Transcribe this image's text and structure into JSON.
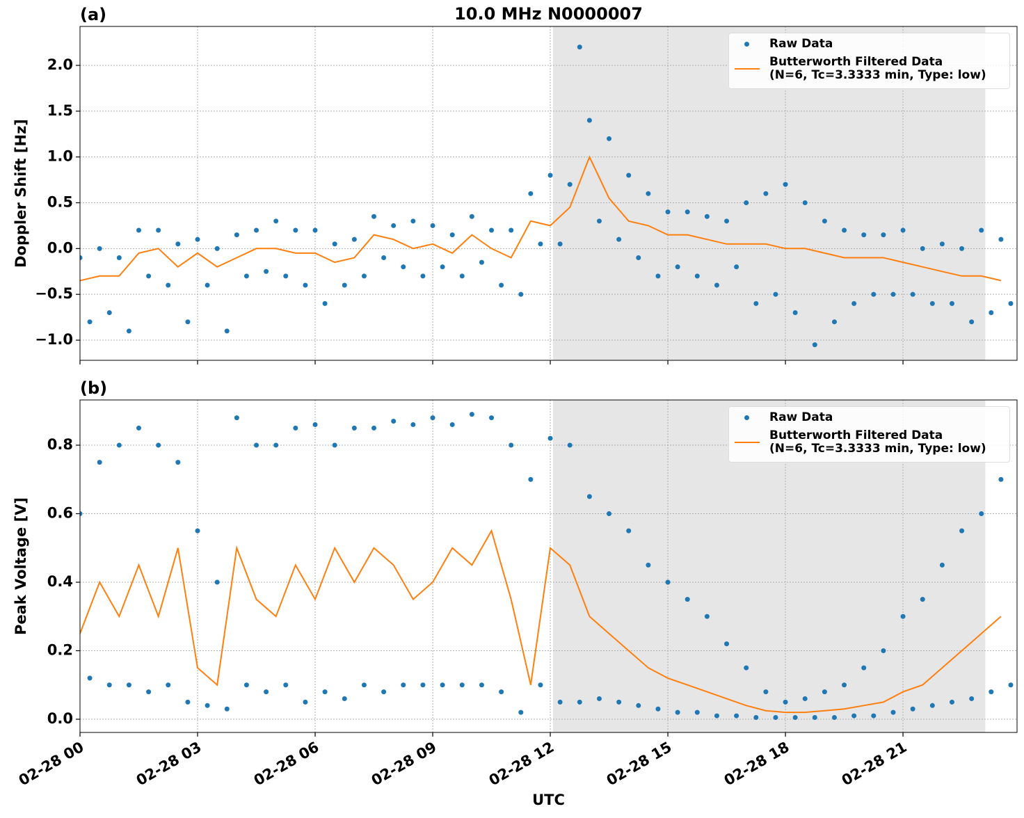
{
  "chart_data": [
    {
      "type": "scatter-line",
      "label": "(a)",
      "title": "10.0 MHz N0000007",
      "ylabel": "Doppler Shift [Hz]",
      "xlim": [
        0,
        23.91
      ],
      "ylim": [
        -1.22,
        2.425
      ],
      "xticks": [
        0,
        3,
        6,
        9,
        12,
        15,
        18,
        21
      ],
      "yticks": [
        {
          "value": -1.0,
          "label": "−1.0"
        },
        {
          "value": -0.5,
          "label": "−0.5"
        },
        {
          "value": 0.0,
          "label": "0.0"
        },
        0.5,
        {
          "value": 1.0,
          "label": "1.0"
        },
        1.5,
        {
          "value": 2.0,
          "label": "2.0"
        }
      ],
      "grid": true,
      "shade": [
        12.07,
        23.1
      ],
      "legend": "upper right",
      "series": [
        {
          "name": "Raw Data",
          "kind": "scatter",
          "color": "#1f77b4",
          "x": [
            0,
            0.25,
            0.5,
            0.75,
            1,
            1.25,
            1.5,
            1.75,
            2,
            2.25,
            2.5,
            2.75,
            3,
            3.25,
            3.5,
            3.75,
            4,
            4.25,
            4.5,
            4.75,
            5,
            5.25,
            5.5,
            5.75,
            6,
            6.25,
            6.5,
            6.75,
            7,
            7.25,
            7.5,
            7.75,
            8,
            8.25,
            8.5,
            8.75,
            9,
            9.25,
            9.5,
            9.75,
            10,
            10.25,
            10.5,
            10.75,
            11,
            11.25,
            11.5,
            11.75,
            12,
            12.25,
            12.5,
            12.75,
            13,
            13.25,
            13.5,
            13.75,
            14,
            14.25,
            14.5,
            14.75,
            15,
            15.25,
            15.5,
            15.75,
            16,
            16.25,
            16.5,
            16.75,
            17,
            17.25,
            17.5,
            17.75,
            18,
            18.25,
            18.5,
            18.75,
            19,
            19.25,
            19.5,
            19.75,
            20,
            20.25,
            20.5,
            20.75,
            21,
            21.25,
            21.5,
            21.75,
            22,
            22.25,
            22.5,
            22.75,
            23,
            23.25,
            23.5,
            23.75
          ],
          "values": [
            -0.1,
            -0.8,
            0.0,
            -0.7,
            -0.1,
            -0.9,
            0.2,
            -0.3,
            0.2,
            -0.4,
            0.05,
            -0.8,
            0.1,
            -0.4,
            0.0,
            -0.9,
            0.15,
            -0.3,
            0.2,
            -0.25,
            0.3,
            -0.3,
            0.2,
            -0.4,
            0.2,
            -0.6,
            0.05,
            -0.4,
            0.1,
            -0.3,
            0.35,
            -0.1,
            0.25,
            -0.2,
            0.3,
            -0.3,
            0.25,
            -0.2,
            0.15,
            -0.3,
            0.35,
            -0.15,
            0.2,
            -0.4,
            0.2,
            -0.5,
            0.6,
            0.05,
            0.8,
            0.05,
            0.7,
            2.2,
            1.4,
            0.3,
            1.2,
            0.1,
            0.8,
            -0.1,
            0.6,
            -0.3,
            0.4,
            -0.2,
            0.4,
            -0.3,
            0.35,
            -0.4,
            0.3,
            -0.2,
            0.5,
            -0.6,
            0.6,
            -0.5,
            0.7,
            -0.7,
            0.5,
            -1.05,
            0.3,
            -0.8,
            0.2,
            -0.6,
            0.15,
            -0.5,
            0.15,
            -0.5,
            0.2,
            -0.5,
            0.0,
            -0.6,
            0.05,
            -0.6,
            0.0,
            -0.8,
            0.2,
            -0.7,
            0.1,
            -0.6
          ]
        },
        {
          "name": "Butterworth Filtered Data\n(N=6, Tc=3.3333 min, Type: low)",
          "kind": "line",
          "color": "#ff7f0e",
          "x": [
            0,
            0.5,
            1,
            1.5,
            2,
            2.5,
            3,
            3.5,
            4,
            4.5,
            5,
            5.5,
            6,
            6.5,
            7,
            7.5,
            8,
            8.5,
            9,
            9.5,
            10,
            10.5,
            11,
            11.5,
            12,
            12.5,
            13,
            13.5,
            14,
            14.5,
            15,
            15.5,
            16,
            16.5,
            17,
            17.5,
            18,
            18.5,
            19,
            19.5,
            20,
            20.5,
            21,
            21.5,
            22,
            22.5,
            23,
            23.5
          ],
          "values": [
            -0.35,
            -0.3,
            -0.3,
            -0.05,
            0.0,
            -0.2,
            -0.05,
            -0.2,
            -0.1,
            0.0,
            0.0,
            -0.05,
            -0.05,
            -0.15,
            -0.1,
            0.15,
            0.1,
            0.0,
            0.05,
            -0.05,
            0.15,
            0.0,
            -0.1,
            0.3,
            0.25,
            0.45,
            1.0,
            0.55,
            0.3,
            0.25,
            0.15,
            0.15,
            0.1,
            0.05,
            0.05,
            0.05,
            0.0,
            0.0,
            -0.05,
            -0.1,
            -0.1,
            -0.1,
            -0.15,
            -0.2,
            -0.25,
            -0.3,
            -0.3,
            -0.35
          ]
        }
      ]
    },
    {
      "type": "scatter-line",
      "label": "(b)",
      "ylabel": "Peak Voltage [V]",
      "xlabel": "UTC",
      "xlim": [
        0,
        23.91
      ],
      "ylim": [
        -0.0386,
        0.932
      ],
      "xticks": [
        {
          "value": 0,
          "label": "02-28 00"
        },
        {
          "value": 3,
          "label": "02-28 03"
        },
        {
          "value": 6,
          "label": "02-28 06"
        },
        {
          "value": 9,
          "label": "02-28 09"
        },
        {
          "value": 12,
          "label": "02-28 12"
        },
        {
          "value": 15,
          "label": "02-28 15"
        },
        {
          "value": 18,
          "label": "02-28 18"
        },
        {
          "value": 21,
          "label": "02-28 21"
        }
      ],
      "yticks": [
        {
          "value": 0.0,
          "label": "0.0"
        },
        0.2,
        0.4,
        0.6,
        0.8
      ],
      "grid": true,
      "shade": [
        12.07,
        23.1
      ],
      "legend": "upper right",
      "series": [
        {
          "name": "Raw Data",
          "kind": "scatter",
          "color": "#1f77b4",
          "x": [
            0,
            0.25,
            0.5,
            0.75,
            1,
            1.25,
            1.5,
            1.75,
            2,
            2.25,
            2.5,
            2.75,
            3,
            3.25,
            3.5,
            3.75,
            4,
            4.25,
            4.5,
            4.75,
            5,
            5.25,
            5.5,
            5.75,
            6,
            6.25,
            6.5,
            6.75,
            7,
            7.25,
            7.5,
            7.75,
            8,
            8.25,
            8.5,
            8.75,
            9,
            9.25,
            9.5,
            9.75,
            10,
            10.25,
            10.5,
            10.75,
            11,
            11.25,
            11.5,
            11.75,
            12,
            12.25,
            12.5,
            12.75,
            13,
            13.25,
            13.5,
            13.75,
            14,
            14.25,
            14.5,
            14.75,
            15,
            15.25,
            15.5,
            15.75,
            16,
            16.25,
            16.5,
            16.75,
            17,
            17.25,
            17.5,
            17.75,
            18,
            18.25,
            18.5,
            18.75,
            19,
            19.25,
            19.5,
            19.75,
            20,
            20.25,
            20.5,
            20.75,
            21,
            21.25,
            21.5,
            21.75,
            22,
            22.25,
            22.5,
            22.75,
            23,
            23.25,
            23.5,
            23.75
          ],
          "values": [
            0.6,
            0.12,
            0.75,
            0.1,
            0.8,
            0.1,
            0.85,
            0.08,
            0.8,
            0.1,
            0.75,
            0.05,
            0.55,
            0.04,
            0.4,
            0.03,
            0.88,
            0.1,
            0.8,
            0.08,
            0.8,
            0.1,
            0.85,
            0.05,
            0.86,
            0.08,
            0.8,
            0.06,
            0.85,
            0.1,
            0.85,
            0.08,
            0.87,
            0.1,
            0.86,
            0.1,
            0.88,
            0.1,
            0.86,
            0.1,
            0.89,
            0.1,
            0.88,
            0.08,
            0.8,
            0.02,
            0.7,
            0.1,
            0.82,
            0.05,
            0.8,
            0.05,
            0.65,
            0.06,
            0.6,
            0.05,
            0.55,
            0.04,
            0.45,
            0.03,
            0.4,
            0.02,
            0.35,
            0.02,
            0.3,
            0.01,
            0.22,
            0.01,
            0.15,
            0.005,
            0.08,
            0.005,
            0.05,
            0.005,
            0.06,
            0.005,
            0.08,
            0.005,
            0.1,
            0.01,
            0.15,
            0.01,
            0.2,
            0.02,
            0.3,
            0.03,
            0.35,
            0.04,
            0.45,
            0.05,
            0.55,
            0.06,
            0.6,
            0.08,
            0.7,
            0.1
          ]
        },
        {
          "name": "Butterworth Filtered Data\n(N=6, Tc=3.3333 min, Type: low)",
          "kind": "line",
          "color": "#ff7f0e",
          "x": [
            0,
            0.5,
            1,
            1.5,
            2,
            2.5,
            3,
            3.5,
            4,
            4.5,
            5,
            5.5,
            6,
            6.5,
            7,
            7.5,
            8,
            8.5,
            9,
            9.5,
            10,
            10.5,
            11,
            11.5,
            12,
            12.5,
            13,
            13.5,
            14,
            14.5,
            15,
            15.5,
            16,
            16.5,
            17,
            17.5,
            18,
            18.5,
            19,
            19.5,
            20,
            20.5,
            21,
            21.5,
            22,
            22.5,
            23,
            23.5
          ],
          "values": [
            0.25,
            0.4,
            0.3,
            0.45,
            0.3,
            0.5,
            0.15,
            0.1,
            0.5,
            0.35,
            0.3,
            0.45,
            0.35,
            0.5,
            0.4,
            0.5,
            0.45,
            0.35,
            0.4,
            0.5,
            0.45,
            0.55,
            0.35,
            0.1,
            0.5,
            0.45,
            0.3,
            0.25,
            0.2,
            0.15,
            0.12,
            0.1,
            0.08,
            0.06,
            0.04,
            0.025,
            0.02,
            0.02,
            0.025,
            0.03,
            0.04,
            0.05,
            0.08,
            0.1,
            0.15,
            0.2,
            0.25,
            0.3
          ]
        }
      ]
    }
  ]
}
